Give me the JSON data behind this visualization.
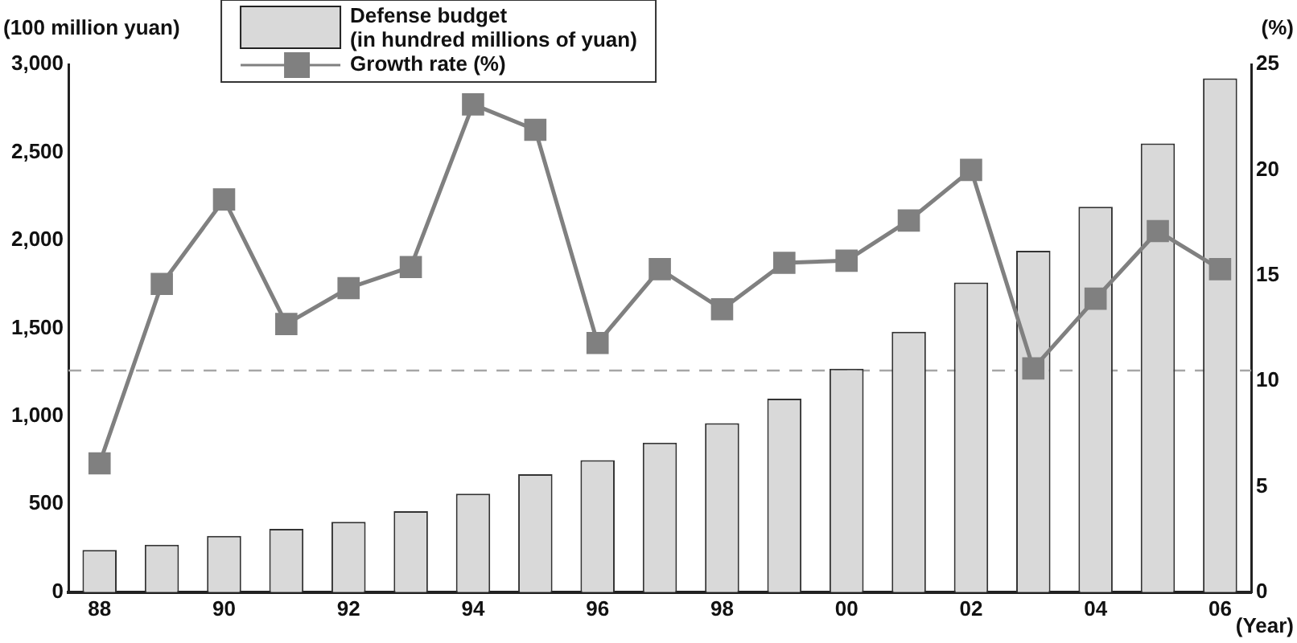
{
  "chart_data": {
    "type": "bar",
    "ylabel": "(100 million yuan)",
    "y2label": "(%)",
    "xlabel": "(Year)",
    "categories": [
      "88",
      null,
      "90",
      null,
      "92",
      null,
      "94",
      null,
      "96",
      null,
      "98",
      null,
      "00",
      null,
      "02",
      null,
      "04",
      null,
      "06"
    ],
    "series": [
      {
        "name": "Defense budget\n(in hundred millions of yuan)",
        "color": "#d9d9d9",
        "values": [
          240,
          270,
          320,
          360,
          400,
          460,
          560,
          670,
          750,
          850,
          960,
          1100,
          1270,
          1480,
          1760,
          1940,
          2190,
          2550,
          2920
        ]
      },
      {
        "name": "Growth rate (%)",
        "type": "line",
        "axis": "y2",
        "color": "#808080",
        "values": [
          6.1,
          14.6,
          18.6,
          12.7,
          14.4,
          15.4,
          23.1,
          21.9,
          11.8,
          15.3,
          13.4,
          15.6,
          15.7,
          17.6,
          20.0,
          10.6,
          13.9,
          17.1,
          15.3
        ]
      }
    ],
    "ylim": [
      0,
      3000
    ],
    "yticks": [
      0,
      {
        "value": 500,
        "label": "500"
      },
      {
        "value": 1000,
        "label": "1,000"
      },
      {
        "value": 1500,
        "label": "1,500"
      },
      {
        "value": 2000,
        "label": "2,000"
      },
      {
        "value": 2500,
        "label": "2,500"
      },
      {
        "value": 3000,
        "label": "3,000"
      }
    ],
    "y2lim": [
      0,
      25
    ],
    "y2ticks": [
      0,
      5,
      10,
      15,
      20,
      25
    ],
    "ref_lines": [
      {
        "axis": "y2",
        "value": 10.5,
        "color": "#a6a6a6",
        "line_style": "dashed"
      }
    ],
    "grid": false,
    "legend": "top",
    "marker": "square",
    "line_style": "solid"
  }
}
